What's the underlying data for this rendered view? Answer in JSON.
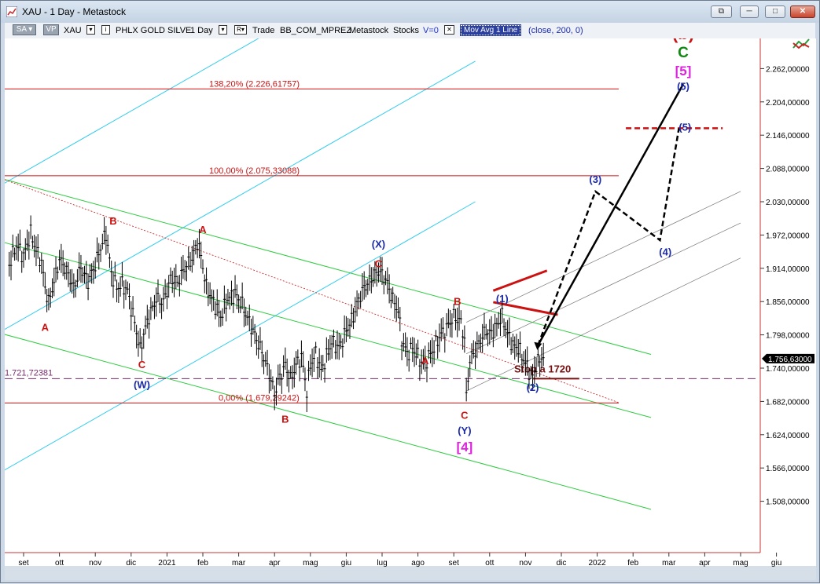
{
  "window": {
    "title": "XAU - 1 Day - Metastock",
    "buttons": [
      "⧉",
      "─",
      "□",
      "✕"
    ]
  },
  "toolbar": {
    "sa": "SA",
    "vp": "VP",
    "symbol": "XAU",
    "symbol_name": "PHLX GOLD SILVE",
    "period": "1 Day",
    "trade": "Trade",
    "account": "BB_COM_MPREZ",
    "source": "Metastock",
    "category": "Stocks",
    "volume": "V=0",
    "indicator": "Mov Avg 1 Line",
    "indicator_params": "(close,  200,  0)"
  },
  "price_tag": "1.756,63000",
  "colors": {
    "candle": "#000000",
    "green_channel": "#2ecc40",
    "cyan_channel": "#33ccee",
    "gray_channel": "#777777",
    "fib_red": "#cc1111",
    "stop_line": "#7a2a6e",
    "wave_red": "#cc1111",
    "wave_blue": "#1a2aa8",
    "wave_magenta": "#dd22dd",
    "wave_green": "#118811"
  },
  "chart_data": {
    "type": "line",
    "y_axis": {
      "ylim": [
        1480,
        2320
      ],
      "ticks": [
        2262,
        2204,
        2146,
        2088,
        2030,
        1972,
        1914,
        1856,
        1798,
        1740,
        1682,
        1624,
        1566,
        1508
      ],
      "tick_labels": [
        "2.262,00000",
        "2.204,00000",
        "2.146,00000",
        "2.088,00000",
        "2.030,00000",
        "1.972,00000",
        "1.914,00000",
        "1.856,00000",
        "1.798,00000",
        "1.740,00000",
        "1.682,00000",
        "1.624,00000",
        "1.566,00000",
        "1.508,00000"
      ]
    },
    "x_axis": {
      "ticks": [
        "set",
        "ott",
        "nov",
        "dic",
        "2021",
        "feb",
        "mar",
        "apr",
        "mag",
        "giu",
        "lug",
        "ago",
        "set",
        "ott",
        "nov",
        "dic",
        "2022",
        "feb",
        "mar",
        "apr",
        "mag",
        "giu"
      ]
    },
    "last_price": 1756.63,
    "fib_levels": [
      {
        "label": "138,20% (2.226,61757)",
        "value": 2226.62
      },
      {
        "label": "100,00% (2.075,33088)",
        "value": 2075.33
      },
      {
        "label": "0,00% (1.679,29242)",
        "value": 1679.29
      }
    ],
    "stop": {
      "label": "1.721,72381",
      "value": 1721.72,
      "note": "Stop a 1720"
    },
    "wave_labels": [
      {
        "text": "B",
        "color": "red",
        "t": 2.5,
        "v": 1990
      },
      {
        "text": "A",
        "color": "red",
        "t": 5.0,
        "v": 1975
      },
      {
        "text": "A",
        "color": "red",
        "t": 0.6,
        "v": 1805
      },
      {
        "text": "C",
        "color": "red",
        "t": 3.3,
        "v": 1740
      },
      {
        "text": "(W)",
        "color": "blue",
        "t": 3.3,
        "v": 1705
      },
      {
        "text": "B",
        "color": "red",
        "t": 7.3,
        "v": 1645
      },
      {
        "text": "(X)",
        "color": "blue",
        "t": 9.9,
        "v": 1950
      },
      {
        "text": "C",
        "color": "red",
        "t": 9.9,
        "v": 1916
      },
      {
        "text": "A",
        "color": "red",
        "t": 11.2,
        "v": 1747
      },
      {
        "text": "B",
        "color": "red",
        "t": 12.1,
        "v": 1850
      },
      {
        "text": "(1)",
        "color": "blue",
        "t": 13.35,
        "v": 1855
      },
      {
        "text": "C",
        "color": "red",
        "t": 12.3,
        "v": 1652
      },
      {
        "text": "(Y)",
        "color": "blue",
        "t": 12.3,
        "v": 1625
      },
      {
        "text": "[4]",
        "color": "magenta",
        "t": 12.3,
        "v": 1595
      },
      {
        "text": "(2)",
        "color": "blue",
        "t": 14.2,
        "v": 1700
      },
      {
        "text": "(3)",
        "color": "blue",
        "t": 15.95,
        "v": 2063
      },
      {
        "text": "(4)",
        "color": "blue",
        "t": 17.9,
        "v": 1936
      },
      {
        "text": "(5)",
        "color": "blue",
        "t": 18.45,
        "v": 2154
      },
      {
        "text": "(5)",
        "color": "blue",
        "t": 18.4,
        "v": 2225
      },
      {
        "text": "[5]",
        "color": "magenta",
        "t": 18.4,
        "v": 2250
      },
      {
        "text": "C",
        "color": "green",
        "t": 18.4,
        "v": 2282
      },
      {
        "text": "(b)",
        "color": "red",
        "t": 18.4,
        "v": 2313
      }
    ],
    "projection_dashed": [
      [
        14.35,
        1780
      ],
      [
        15.95,
        2048
      ],
      [
        17.75,
        1963
      ],
      [
        18.28,
        2158
      ]
    ],
    "projection_solid": [
      [
        14.35,
        1780
      ],
      [
        18.4,
        2235
      ]
    ],
    "price_path": [
      [
        -0.4,
        1920
      ],
      [
        -0.2,
        1955
      ],
      [
        0.0,
        1935
      ],
      [
        0.2,
        1975
      ],
      [
        0.35,
        1945
      ],
      [
        0.5,
        1925
      ],
      [
        0.6,
        1880
      ],
      [
        0.7,
        1855
      ],
      [
        0.85,
        1890
      ],
      [
        1.0,
        1930
      ],
      [
        1.2,
        1910
      ],
      [
        1.4,
        1880
      ],
      [
        1.6,
        1915
      ],
      [
        1.8,
        1890
      ],
      [
        2.0,
        1920
      ],
      [
        2.15,
        1950
      ],
      [
        2.3,
        1975
      ],
      [
        2.45,
        1905
      ],
      [
        2.6,
        1880
      ],
      [
        2.75,
        1885
      ],
      [
        2.9,
        1875
      ],
      [
        3.0,
        1845
      ],
      [
        3.1,
        1820
      ],
      [
        3.25,
        1770
      ],
      [
        3.35,
        1800
      ],
      [
        3.5,
        1830
      ],
      [
        3.7,
        1860
      ],
      [
        3.9,
        1855
      ],
      [
        4.1,
        1895
      ],
      [
        4.3,
        1890
      ],
      [
        4.5,
        1915
      ],
      [
        4.7,
        1930
      ],
      [
        4.85,
        1960
      ],
      [
        4.95,
        1935
      ],
      [
        5.1,
        1880
      ],
      [
        5.3,
        1855
      ],
      [
        5.5,
        1830
      ],
      [
        5.7,
        1860
      ],
      [
        5.9,
        1870
      ],
      [
        6.1,
        1850
      ],
      [
        6.3,
        1820
      ],
      [
        6.5,
        1790
      ],
      [
        6.7,
        1760
      ],
      [
        6.9,
        1720
      ],
      [
        7.0,
        1695
      ],
      [
        7.15,
        1725
      ],
      [
        7.3,
        1745
      ],
      [
        7.45,
        1720
      ],
      [
        7.6,
        1745
      ],
      [
        7.75,
        1760
      ],
      [
        7.9,
        1700
      ],
      [
        8.0,
        1745
      ],
      [
        8.15,
        1765
      ],
      [
        8.3,
        1735
      ],
      [
        8.45,
        1760
      ],
      [
        8.6,
        1785
      ],
      [
        8.8,
        1775
      ],
      [
        9.0,
        1805
      ],
      [
        9.2,
        1830
      ],
      [
        9.35,
        1860
      ],
      [
        9.5,
        1880
      ],
      [
        9.7,
        1895
      ],
      [
        9.9,
        1910
      ],
      [
        10.1,
        1895
      ],
      [
        10.3,
        1860
      ],
      [
        10.45,
        1840
      ],
      [
        10.55,
        1790
      ],
      [
        10.7,
        1765
      ],
      [
        10.85,
        1775
      ],
      [
        11.0,
        1760
      ],
      [
        11.15,
        1745
      ],
      [
        11.3,
        1760
      ],
      [
        11.45,
        1775
      ],
      [
        11.6,
        1795
      ],
      [
        11.8,
        1810
      ],
      [
        12.0,
        1830
      ],
      [
        12.2,
        1820
      ],
      [
        12.3,
        1790
      ],
      [
        12.35,
        1690
      ],
      [
        12.45,
        1755
      ],
      [
        12.6,
        1770
      ],
      [
        12.75,
        1790
      ],
      [
        12.9,
        1805
      ],
      [
        13.05,
        1800
      ],
      [
        13.2,
        1815
      ],
      [
        13.35,
        1830
      ],
      [
        13.5,
        1800
      ],
      [
        13.65,
        1780
      ],
      [
        13.8,
        1775
      ],
      [
        13.95,
        1755
      ],
      [
        14.1,
        1735
      ],
      [
        14.2,
        1725
      ],
      [
        14.3,
        1745
      ],
      [
        14.45,
        1760
      ],
      [
        14.55,
        1757
      ]
    ]
  }
}
